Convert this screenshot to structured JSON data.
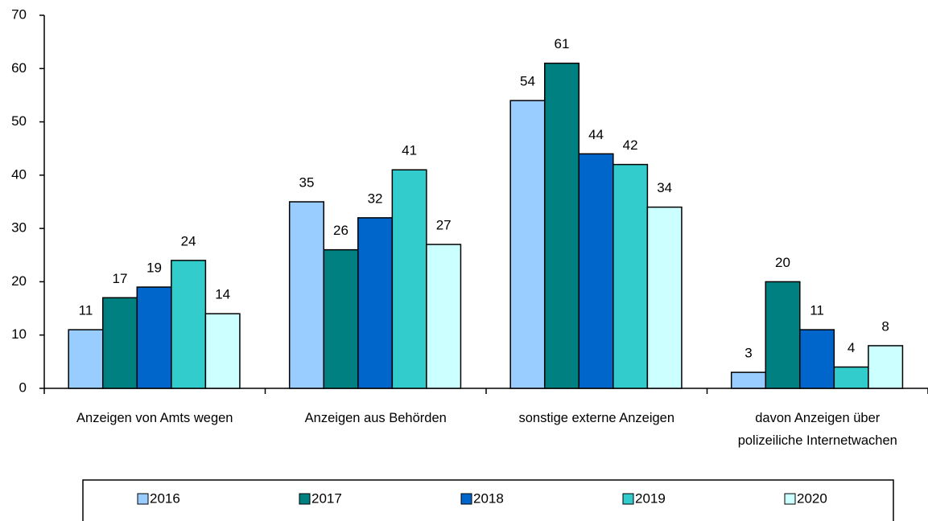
{
  "chart_data": {
    "type": "bar",
    "categories": [
      "Anzeigen von Amts wegen",
      "Anzeigen aus Behörden",
      "sonstige externe Anzeigen",
      "davon Anzeigen über polizeiliche Internetwachen"
    ],
    "series": [
      {
        "name": "2016",
        "color": "#99ccff",
        "values": [
          11,
          35,
          54,
          3
        ]
      },
      {
        "name": "2017",
        "color": "#008080",
        "values": [
          17,
          26,
          61,
          20
        ]
      },
      {
        "name": "2018",
        "color": "#0066cc",
        "values": [
          19,
          32,
          44,
          11
        ]
      },
      {
        "name": "2019",
        "color": "#33cccc",
        "values": [
          24,
          41,
          42,
          4
        ]
      },
      {
        "name": "2020",
        "color": "#ccffff",
        "values": [
          14,
          27,
          34,
          8
        ]
      }
    ],
    "ylim": [
      0,
      70
    ],
    "yticks": [
      0,
      10,
      20,
      30,
      40,
      50,
      60,
      70
    ],
    "grid": false,
    "legend": "bottom"
  }
}
